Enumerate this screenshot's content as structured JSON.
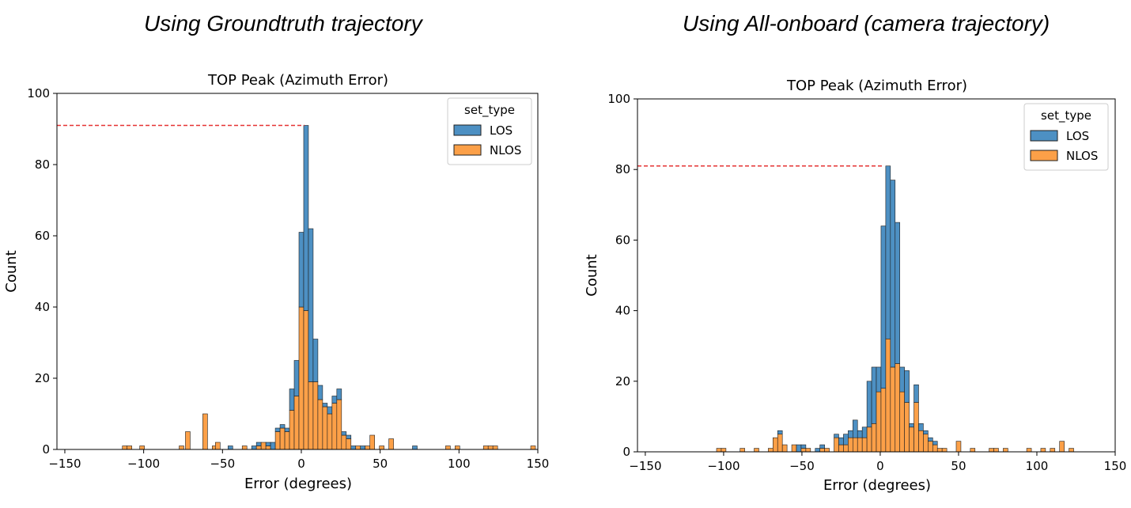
{
  "captions": {
    "left": "Using Groundtruth trajectory",
    "right": "Using All-onboard (camera trajectory)"
  },
  "colors": {
    "los": "#4d90c3",
    "nlos": "#fca048",
    "edge": "#1f1f1f",
    "ref_line": "#e53333"
  },
  "chart_data": [
    {
      "type": "bar",
      "subtype": "stacked-histogram",
      "title": "TOP Peak (Azimuth Error)",
      "xlabel": "Error (degrees)",
      "ylabel": "Count",
      "xlim": [
        -155,
        150
      ],
      "ylim": [
        0,
        100
      ],
      "xticks": [
        -150,
        -100,
        -50,
        0,
        50,
        100,
        150
      ],
      "yticks": [
        0,
        20,
        40,
        60,
        80,
        100
      ],
      "bin_width": 3,
      "legend": {
        "title": "set_type",
        "entries": [
          "LOS",
          "NLOS"
        ],
        "position": "top-right"
      },
      "reference_line": {
        "y": 91,
        "x_end": 2
      },
      "bins": [
        {
          "x": -112,
          "los": 0,
          "nlos": 1
        },
        {
          "x": -109,
          "los": 0,
          "nlos": 1
        },
        {
          "x": -101,
          "los": 0,
          "nlos": 1
        },
        {
          "x": -76,
          "los": 0,
          "nlos": 1
        },
        {
          "x": -72,
          "los": 0,
          "nlos": 5
        },
        {
          "x": -61,
          "los": 0,
          "nlos": 10
        },
        {
          "x": -55,
          "los": 0,
          "nlos": 1
        },
        {
          "x": -53,
          "los": 0,
          "nlos": 2
        },
        {
          "x": -45,
          "los": 1,
          "nlos": 0
        },
        {
          "x": -36,
          "los": 0,
          "nlos": 1
        },
        {
          "x": -30,
          "los": 1,
          "nlos": 0
        },
        {
          "x": -27,
          "los": 1,
          "nlos": 1
        },
        {
          "x": -24,
          "los": 0,
          "nlos": 2
        },
        {
          "x": -21,
          "los": 1,
          "nlos": 1
        },
        {
          "x": -18,
          "los": 2,
          "nlos": 0
        },
        {
          "x": -15,
          "los": 1,
          "nlos": 5
        },
        {
          "x": -12,
          "los": 1,
          "nlos": 6
        },
        {
          "x": -9,
          "los": 1,
          "nlos": 5
        },
        {
          "x": -6,
          "los": 6,
          "nlos": 11
        },
        {
          "x": -3,
          "los": 10,
          "nlos": 15
        },
        {
          "x": 0,
          "los": 21,
          "nlos": 40
        },
        {
          "x": 3,
          "los": 52,
          "nlos": 39
        },
        {
          "x": 6,
          "los": 43,
          "nlos": 19
        },
        {
          "x": 9,
          "los": 12,
          "nlos": 19
        },
        {
          "x": 12,
          "los": 4,
          "nlos": 14
        },
        {
          "x": 15,
          "los": 1,
          "nlos": 12
        },
        {
          "x": 18,
          "los": 2,
          "nlos": 10
        },
        {
          "x": 21,
          "los": 2,
          "nlos": 13
        },
        {
          "x": 24,
          "los": 3,
          "nlos": 14
        },
        {
          "x": 27,
          "los": 1,
          "nlos": 4
        },
        {
          "x": 30,
          "los": 1,
          "nlos": 3
        },
        {
          "x": 33,
          "los": 1,
          "nlos": 0
        },
        {
          "x": 36,
          "los": 0,
          "nlos": 1
        },
        {
          "x": 39,
          "los": 1,
          "nlos": 0
        },
        {
          "x": 42,
          "los": 0,
          "nlos": 1
        },
        {
          "x": 45,
          "los": 0,
          "nlos": 4
        },
        {
          "x": 51,
          "los": 0,
          "nlos": 1
        },
        {
          "x": 57,
          "los": 0,
          "nlos": 3
        },
        {
          "x": 72,
          "los": 1,
          "nlos": 0
        },
        {
          "x": 93,
          "los": 0,
          "nlos": 1
        },
        {
          "x": 99,
          "los": 0,
          "nlos": 1
        },
        {
          "x": 117,
          "los": 0,
          "nlos": 1
        },
        {
          "x": 120,
          "los": 0,
          "nlos": 1
        },
        {
          "x": 123,
          "los": 0,
          "nlos": 1
        },
        {
          "x": 147,
          "los": 0,
          "nlos": 1
        }
      ]
    },
    {
      "type": "bar",
      "subtype": "stacked-histogram",
      "title": "TOP Peak (Azimuth Error)",
      "xlabel": "Error (degrees)",
      "ylabel": "Count",
      "xlim": [
        -155,
        150
      ],
      "ylim": [
        0,
        100
      ],
      "xticks": [
        -150,
        -100,
        -50,
        0,
        50,
        100,
        150
      ],
      "yticks": [
        0,
        20,
        40,
        60,
        80,
        100
      ],
      "bin_width": 3,
      "legend": {
        "title": "set_type",
        "entries": [
          "LOS",
          "NLOS"
        ],
        "position": "top-right"
      },
      "reference_line": {
        "y": 81,
        "x_end": 2
      },
      "bins": [
        {
          "x": -103,
          "los": 0,
          "nlos": 1
        },
        {
          "x": -100,
          "los": 0,
          "nlos": 1
        },
        {
          "x": -88,
          "los": 0,
          "nlos": 1
        },
        {
          "x": -79,
          "los": 0,
          "nlos": 1
        },
        {
          "x": -70,
          "los": 0,
          "nlos": 1
        },
        {
          "x": -67,
          "los": 0,
          "nlos": 4
        },
        {
          "x": -64,
          "los": 1,
          "nlos": 5
        },
        {
          "x": -61,
          "los": 0,
          "nlos": 2
        },
        {
          "x": -55,
          "los": 0,
          "nlos": 2
        },
        {
          "x": -52,
          "los": 2,
          "nlos": 0
        },
        {
          "x": -49,
          "los": 1,
          "nlos": 1
        },
        {
          "x": -46,
          "los": 0,
          "nlos": 1
        },
        {
          "x": -40,
          "los": 1,
          "nlos": 0
        },
        {
          "x": -37,
          "los": 1,
          "nlos": 1
        },
        {
          "x": -34,
          "los": 0,
          "nlos": 1
        },
        {
          "x": -28,
          "los": 1,
          "nlos": 4
        },
        {
          "x": -25,
          "los": 2,
          "nlos": 2
        },
        {
          "x": -22,
          "los": 3,
          "nlos": 2
        },
        {
          "x": -19,
          "los": 2,
          "nlos": 4
        },
        {
          "x": -16,
          "los": 5,
          "nlos": 4
        },
        {
          "x": -13,
          "los": 2,
          "nlos": 4
        },
        {
          "x": -10,
          "los": 3,
          "nlos": 4
        },
        {
          "x": -7,
          "los": 13,
          "nlos": 7
        },
        {
          "x": -4,
          "los": 16,
          "nlos": 8
        },
        {
          "x": -1,
          "los": 7,
          "nlos": 17
        },
        {
          "x": 2,
          "los": 46,
          "nlos": 18
        },
        {
          "x": 5,
          "los": 49,
          "nlos": 32
        },
        {
          "x": 8,
          "los": 53,
          "nlos": 24
        },
        {
          "x": 11,
          "los": 40,
          "nlos": 25
        },
        {
          "x": 14,
          "los": 7,
          "nlos": 17
        },
        {
          "x": 17,
          "los": 9,
          "nlos": 14
        },
        {
          "x": 20,
          "los": 1,
          "nlos": 7
        },
        {
          "x": 23,
          "los": 5,
          "nlos": 14
        },
        {
          "x": 26,
          "los": 2,
          "nlos": 6
        },
        {
          "x": 29,
          "los": 1,
          "nlos": 5
        },
        {
          "x": 32,
          "los": 1,
          "nlos": 3
        },
        {
          "x": 35,
          "los": 1,
          "nlos": 2
        },
        {
          "x": 38,
          "los": 0,
          "nlos": 1
        },
        {
          "x": 41,
          "los": 0,
          "nlos": 1
        },
        {
          "x": 50,
          "los": 0,
          "nlos": 3
        },
        {
          "x": 59,
          "los": 0,
          "nlos": 1
        },
        {
          "x": 71,
          "los": 0,
          "nlos": 1
        },
        {
          "x": 74,
          "los": 0,
          "nlos": 1
        },
        {
          "x": 80,
          "los": 0,
          "nlos": 1
        },
        {
          "x": 95,
          "los": 0,
          "nlos": 1
        },
        {
          "x": 104,
          "los": 0,
          "nlos": 1
        },
        {
          "x": 110,
          "los": 0,
          "nlos": 1
        },
        {
          "x": 116,
          "los": 0,
          "nlos": 3
        },
        {
          "x": 122,
          "los": 0,
          "nlos": 1
        }
      ]
    }
  ]
}
